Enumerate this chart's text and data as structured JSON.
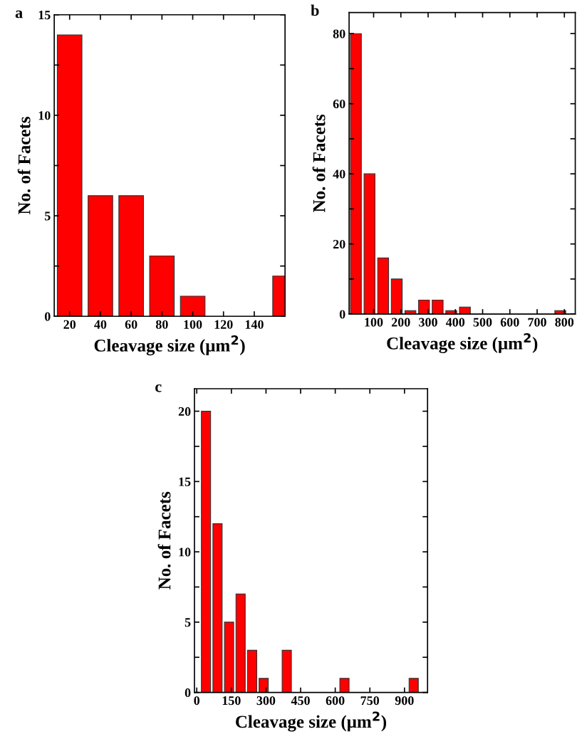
{
  "chart_data": [
    {
      "type": "bar",
      "title": "a",
      "xlabel": "Cleavage size (μm$^{2}$)",
      "ylabel": "No. of Facets",
      "x": [
        20,
        40,
        60,
        80,
        100,
        160
      ],
      "values": [
        14,
        6,
        6,
        3,
        1,
        2
      ],
      "color": "#ff0000",
      "xlim": [
        10,
        160
      ],
      "xticks": [
        20,
        40,
        60,
        80,
        100,
        120,
        140
      ],
      "ylim": [
        0,
        15
      ],
      "yticks": [
        0,
        {
          "value": 2.5,
          "label": null
        },
        5,
        {
          "value": 7.5,
          "label": null
        },
        10,
        {
          "value": 12.5,
          "label": null
        },
        15
      ],
      "grid": false
    },
    {
      "type": "bar",
      "title": "b",
      "xlabel": "Cleavage size (μm$^{2}$)",
      "ylabel": "No. of Facets",
      "x": [
        35,
        85,
        135,
        185,
        235,
        285,
        335,
        385,
        435,
        785
      ],
      "values": [
        80,
        40,
        16,
        10,
        1,
        4,
        4,
        1,
        2,
        1
      ],
      "color": "#ff0000",
      "xlim": [
        10,
        840
      ],
      "xticks": [
        100,
        200,
        300,
        400,
        500,
        600,
        700,
        800
      ],
      "ylim": [
        0,
        86
      ],
      "yticks": [
        0,
        {
          "value": 10,
          "label": null
        },
        20,
        {
          "value": 30,
          "label": null
        },
        40,
        {
          "value": 50,
          "label": null
        },
        60,
        {
          "value": 70,
          "label": null
        },
        80
      ],
      "grid": false
    },
    {
      "type": "bar",
      "title": "c",
      "xlabel": "Cleavage size (μm$^{2}$)",
      "ylabel": "No. of Facets",
      "x": [
        40,
        90,
        140,
        190,
        240,
        290,
        390,
        640,
        940
      ],
      "values": [
        20,
        12,
        5,
        7,
        3,
        1,
        3,
        1,
        1
      ],
      "color": "#ff0000",
      "xlim": [
        -10,
        1000
      ],
      "xticks": [
        0,
        150,
        300,
        450,
        600,
        750,
        900
      ],
      "ylim": [
        0,
        21.6
      ],
      "yticks": [
        0,
        {
          "value": 2.5,
          "label": null
        },
        5,
        {
          "value": 7.5,
          "label": null
        },
        10,
        {
          "value": 12.5,
          "label": null
        },
        15,
        {
          "value": 17.5,
          "label": null
        },
        20
      ],
      "grid": false
    }
  ]
}
